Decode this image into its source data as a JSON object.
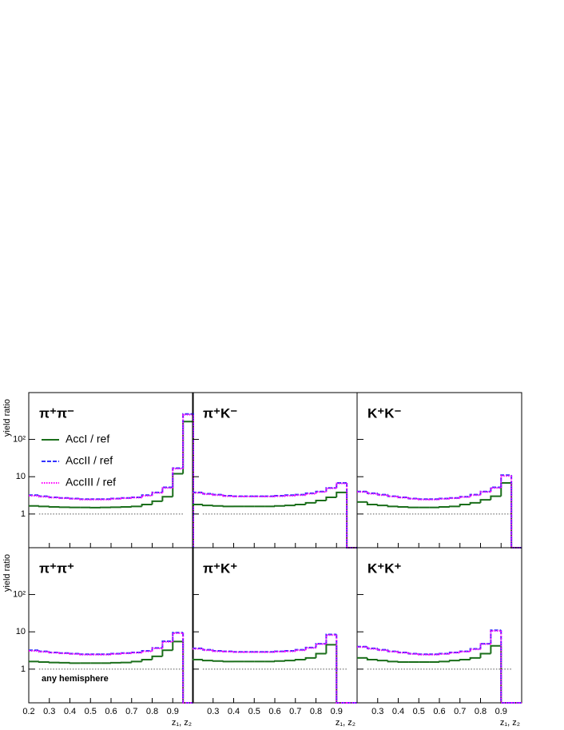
{
  "chart_data": [
    {
      "type": "histogram",
      "title": "π⁺π⁻",
      "ylabel": "yield ratio",
      "ytick_labels": true,
      "xtick_labels": false,
      "bins": [
        0.2,
        0.25,
        0.3,
        0.35,
        0.4,
        0.45,
        0.5,
        0.55,
        0.6,
        0.65,
        0.7,
        0.75,
        0.8,
        0.85,
        0.9,
        0.95,
        1.0
      ],
      "xlim": [
        0.2,
        1.0
      ],
      "ylim": [
        0.125,
        1800
      ],
      "log_y": true,
      "xticks": [
        0.2,
        0.3,
        0.4,
        0.5,
        0.6,
        0.7,
        0.8,
        0.9
      ],
      "yticks": [
        1,
        10,
        {
          "value": 100,
          "label": "10²"
        }
      ],
      "reference": {
        "y": 1,
        "x": [
          0.25,
          0.95
        ]
      },
      "legend": "upper left",
      "series": [
        {
          "name": "AccI  / ref",
          "color": "#1a6e1a",
          "linestyle": "solid",
          "values": [
            1.65,
            1.6,
            1.55,
            1.52,
            1.5,
            1.5,
            1.48,
            1.5,
            1.52,
            1.55,
            1.6,
            1.8,
            2.2,
            2.9,
            12,
            300
          ]
        },
        {
          "name": "AccII  / ref",
          "color": "#3333ff",
          "linestyle": "dashed",
          "values": [
            3.2,
            3.0,
            2.8,
            2.7,
            2.6,
            2.5,
            2.5,
            2.5,
            2.6,
            2.7,
            2.8,
            3.2,
            3.8,
            5.2,
            17,
            480
          ]
        },
        {
          "name": "AccIII / ref",
          "color": "#ff00ff",
          "linestyle": "dotted",
          "values": [
            3.1,
            2.9,
            2.75,
            2.65,
            2.55,
            2.45,
            2.45,
            2.45,
            2.55,
            2.65,
            2.75,
            3.1,
            3.7,
            5.0,
            16.5,
            460
          ]
        }
      ]
    },
    {
      "type": "histogram",
      "title": "π⁺K⁻",
      "ytick_labels": false,
      "xtick_labels": false,
      "bins": [
        0.2,
        0.25,
        0.3,
        0.35,
        0.4,
        0.45,
        0.5,
        0.55,
        0.6,
        0.65,
        0.7,
        0.75,
        0.8,
        0.85,
        0.9,
        0.95,
        1.0
      ],
      "xlim": [
        0.2,
        1.0
      ],
      "ylim": [
        0.125,
        1800
      ],
      "log_y": true,
      "xticks": [
        0.3,
        0.4,
        0.5,
        0.6,
        0.7,
        0.8,
        0.9
      ],
      "yticks": [
        1,
        10,
        100
      ],
      "reference": {
        "y": 1,
        "x": [
          0.25,
          0.95
        ]
      },
      "series": [
        {
          "color": "#1a6e1a",
          "linestyle": "solid",
          "values": [
            1.8,
            1.7,
            1.65,
            1.6,
            1.6,
            1.6,
            1.6,
            1.6,
            1.65,
            1.7,
            1.8,
            2.0,
            2.3,
            2.8,
            3.8,
            0
          ]
        },
        {
          "color": "#3333ff",
          "linestyle": "dashed",
          "values": [
            3.8,
            3.5,
            3.3,
            3.1,
            3.0,
            3.0,
            3.0,
            3.0,
            3.1,
            3.2,
            3.3,
            3.6,
            4.0,
            5.0,
            6.8,
            0
          ]
        },
        {
          "color": "#ff00ff",
          "linestyle": "dotted",
          "values": [
            3.7,
            3.4,
            3.2,
            3.0,
            2.95,
            2.95,
            2.95,
            2.95,
            3.0,
            3.1,
            3.2,
            3.5,
            3.9,
            4.9,
            6.6,
            0
          ]
        }
      ]
    },
    {
      "type": "histogram",
      "title": "K⁺K⁻",
      "ytick_labels": false,
      "xtick_labels": false,
      "bins": [
        0.2,
        0.25,
        0.3,
        0.35,
        0.4,
        0.45,
        0.5,
        0.55,
        0.6,
        0.65,
        0.7,
        0.75,
        0.8,
        0.85,
        0.9,
        0.95,
        1.0
      ],
      "xlim": [
        0.2,
        1.0
      ],
      "ylim": [
        0.125,
        1800
      ],
      "log_y": true,
      "xticks": [
        0.3,
        0.4,
        0.5,
        0.6,
        0.7,
        0.8,
        0.9
      ],
      "yticks": [
        1,
        10,
        100
      ],
      "reference": {
        "y": 1,
        "x": [
          0.25,
          0.95
        ]
      },
      "series": [
        {
          "color": "#1a6e1a",
          "linestyle": "solid",
          "values": [
            2.1,
            1.8,
            1.7,
            1.6,
            1.55,
            1.5,
            1.5,
            1.5,
            1.55,
            1.6,
            1.8,
            2.0,
            2.4,
            3.0,
            6.8,
            0
          ]
        },
        {
          "color": "#3333ff",
          "linestyle": "dashed",
          "values": [
            4.0,
            3.6,
            3.3,
            3.0,
            2.8,
            2.6,
            2.5,
            2.5,
            2.6,
            2.7,
            2.9,
            3.3,
            4.0,
            5.2,
            11,
            0
          ]
        },
        {
          "color": "#ff00ff",
          "linestyle": "dotted",
          "values": [
            3.9,
            3.5,
            3.2,
            2.95,
            2.75,
            2.55,
            2.45,
            2.45,
            2.55,
            2.65,
            2.85,
            3.2,
            3.9,
            5.0,
            10.5,
            0
          ]
        }
      ]
    },
    {
      "type": "histogram",
      "title": "π⁺π⁺",
      "ylabel": "yield ratio",
      "xlabel": "z₁, z₂",
      "annotation": "any hemisphere",
      "ytick_labels": true,
      "xtick_labels": true,
      "bins": [
        0.2,
        0.25,
        0.3,
        0.35,
        0.4,
        0.45,
        0.5,
        0.55,
        0.6,
        0.65,
        0.7,
        0.75,
        0.8,
        0.85,
        0.9,
        0.95,
        1.0
      ],
      "xlim": [
        0.2,
        1.0
      ],
      "ylim": [
        0.125,
        1800
      ],
      "log_y": true,
      "xticks": [
        0.2,
        0.3,
        0.4,
        0.5,
        0.6,
        0.7,
        0.8,
        0.9
      ],
      "yticks": [
        1,
        10,
        {
          "value": 100,
          "label": "10²"
        }
      ],
      "reference": {
        "y": 1,
        "x": [
          0.25,
          0.95
        ]
      },
      "series": [
        {
          "color": "#1a6e1a",
          "linestyle": "solid",
          "values": [
            1.6,
            1.55,
            1.5,
            1.48,
            1.45,
            1.45,
            1.45,
            1.45,
            1.48,
            1.5,
            1.6,
            1.8,
            2.2,
            3.2,
            5.5,
            0
          ]
        },
        {
          "color": "#3333ff",
          "linestyle": "dashed",
          "values": [
            3.2,
            3.0,
            2.8,
            2.7,
            2.6,
            2.5,
            2.5,
            2.5,
            2.6,
            2.7,
            2.8,
            3.1,
            3.7,
            5.6,
            9.5,
            0
          ]
        },
        {
          "color": "#ff00ff",
          "linestyle": "dotted",
          "values": [
            3.1,
            2.9,
            2.75,
            2.65,
            2.55,
            2.45,
            2.45,
            2.45,
            2.55,
            2.65,
            2.75,
            3.0,
            3.6,
            5.4,
            9.2,
            0
          ]
        }
      ]
    },
    {
      "type": "histogram",
      "title": "π⁺K⁺",
      "xlabel": "z₁, z₂",
      "ytick_labels": false,
      "xtick_labels": true,
      "bins": [
        0.2,
        0.25,
        0.3,
        0.35,
        0.4,
        0.45,
        0.5,
        0.55,
        0.6,
        0.65,
        0.7,
        0.75,
        0.8,
        0.85,
        0.9,
        0.95,
        1.0
      ],
      "xlim": [
        0.2,
        1.0
      ],
      "ylim": [
        0.125,
        1800
      ],
      "log_y": true,
      "xticks": [
        0.3,
        0.4,
        0.5,
        0.6,
        0.7,
        0.8,
        0.9
      ],
      "yticks": [
        1,
        10,
        100
      ],
      "reference": {
        "y": 1,
        "x": [
          0.25,
          0.95
        ]
      },
      "series": [
        {
          "color": "#1a6e1a",
          "linestyle": "solid",
          "values": [
            1.8,
            1.7,
            1.65,
            1.6,
            1.6,
            1.6,
            1.6,
            1.6,
            1.65,
            1.7,
            1.8,
            2.0,
            2.6,
            4.5,
            0,
            0
          ]
        },
        {
          "color": "#3333ff",
          "linestyle": "dashed",
          "values": [
            3.6,
            3.3,
            3.1,
            3.0,
            2.9,
            2.9,
            2.9,
            2.9,
            3.0,
            3.1,
            3.3,
            3.8,
            4.8,
            8.5,
            0,
            0
          ]
        },
        {
          "color": "#ff00ff",
          "linestyle": "dotted",
          "values": [
            3.5,
            3.2,
            3.0,
            2.95,
            2.85,
            2.85,
            2.85,
            2.85,
            2.95,
            3.0,
            3.2,
            3.7,
            4.7,
            8.2,
            0,
            0
          ]
        }
      ]
    },
    {
      "type": "histogram",
      "title": "K⁺K⁺",
      "xlabel": "z₁, z₂",
      "ytick_labels": false,
      "xtick_labels": true,
      "bins": [
        0.2,
        0.25,
        0.3,
        0.35,
        0.4,
        0.45,
        0.5,
        0.55,
        0.6,
        0.65,
        0.7,
        0.75,
        0.8,
        0.85,
        0.9,
        0.95,
        1.0
      ],
      "xlim": [
        0.2,
        1.0
      ],
      "ylim": [
        0.125,
        1800
      ],
      "log_y": true,
      "xticks": [
        0.3,
        0.4,
        0.5,
        0.6,
        0.7,
        0.8,
        0.9
      ],
      "yticks": [
        1,
        10,
        100
      ],
      "reference": {
        "y": 1,
        "x": [
          0.25,
          0.95
        ]
      },
      "series": [
        {
          "color": "#1a6e1a",
          "linestyle": "solid",
          "values": [
            2.0,
            1.8,
            1.7,
            1.6,
            1.55,
            1.55,
            1.55,
            1.55,
            1.6,
            1.7,
            1.8,
            2.0,
            2.6,
            4.2,
            0,
            0
          ]
        },
        {
          "color": "#3333ff",
          "linestyle": "dashed",
          "values": [
            4.0,
            3.6,
            3.3,
            3.0,
            2.8,
            2.6,
            2.5,
            2.5,
            2.6,
            2.8,
            3.0,
            3.5,
            4.8,
            11,
            0,
            0
          ]
        },
        {
          "color": "#ff00ff",
          "linestyle": "dotted",
          "values": [
            3.9,
            3.5,
            3.2,
            2.95,
            2.75,
            2.55,
            2.45,
            2.45,
            2.55,
            2.75,
            2.95,
            3.4,
            4.7,
            10.6,
            0,
            0
          ]
        }
      ]
    }
  ]
}
